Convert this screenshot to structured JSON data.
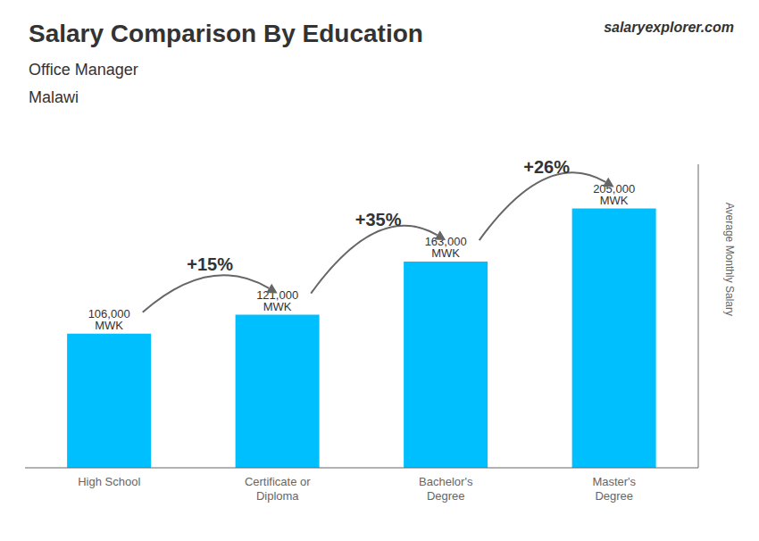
{
  "chart_data": {
    "type": "bar",
    "title": "Salary Comparison By Education",
    "subtitle": "Office Manager",
    "country": "Malawi",
    "brand": "salaryexplorer.com",
    "ylabel": "Average Monthly Salary",
    "categories": [
      "High School",
      "Certificate or\nDiploma",
      "Bachelor's\nDegree",
      "Master's\nDegree"
    ],
    "values": [
      106000,
      121000,
      163000,
      205000
    ],
    "value_labels": [
      "106,000 MWK",
      "121,000 MWK",
      "163,000 MWK",
      "205,000 MWK"
    ],
    "annotations": [
      "+15%",
      "+35%",
      "+26%"
    ],
    "color": "#00BFFF",
    "ylim": [
      0,
      240000
    ],
    "yticks": [],
    "grid": false,
    "tick_labels": "x"
  }
}
